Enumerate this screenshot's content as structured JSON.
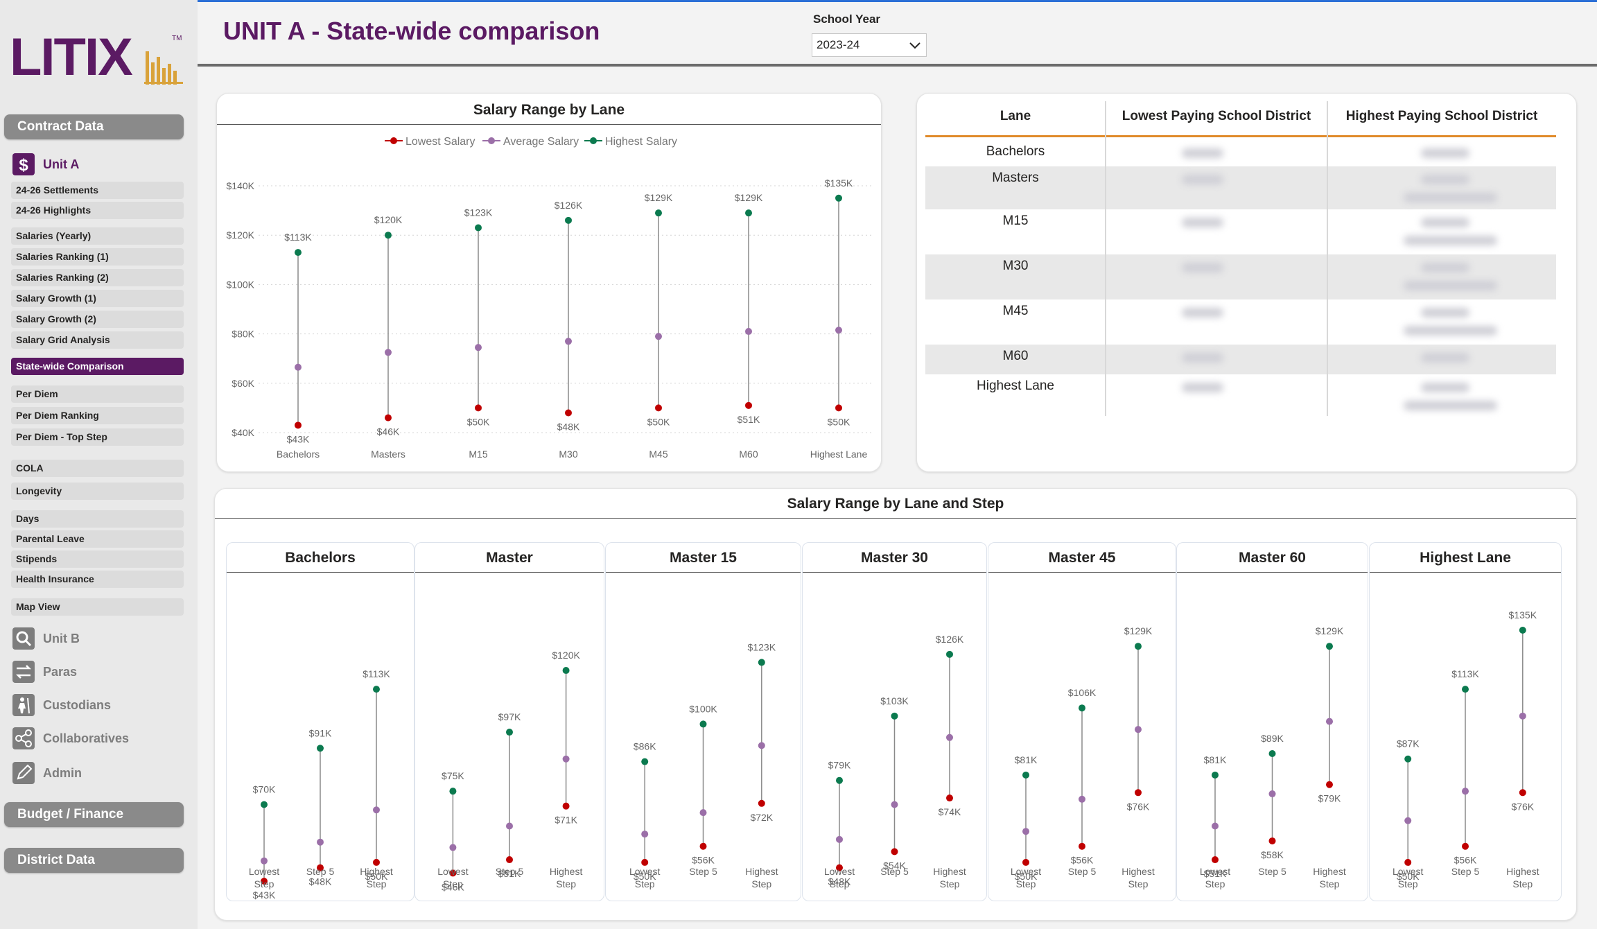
{
  "logo": {
    "text": "LITIX",
    "trademark": "TM"
  },
  "sidebar": {
    "sections": {
      "contract": "Contract Data",
      "budget": "Budget / Finance",
      "district": "District Data"
    },
    "units": {
      "unit_a": "Unit A",
      "unit_b": "Unit B",
      "paras": "Paras",
      "custodians": "Custodians",
      "collaboratives": "Collaboratives",
      "admin": "Admin"
    },
    "items": [
      "24-26 Settlements",
      "24-26 Highlights",
      "Salaries (Yearly)",
      "Salaries Ranking (1)",
      "Salaries Ranking (2)",
      "Salary Growth (1)",
      "Salary Growth (2)",
      "Salary Grid Analysis",
      "State-wide Comparison",
      "Per Diem",
      "Per Diem Ranking",
      "Per Diem - Top Step",
      "COLA",
      "Longevity",
      "Days",
      "Parental Leave",
      "Stipends",
      "Health Insurance",
      "Map View"
    ],
    "active_item": "State-wide Comparison"
  },
  "header": {
    "title": "UNIT A - State-wide comparison",
    "school_year_label": "School Year",
    "school_year_value": "2023-24"
  },
  "colors": {
    "brand": "#5b1a63",
    "lowest": "#c00000",
    "average": "#9b6fa8",
    "highest": "#0b7a4f",
    "table_accent": "#e08a2a"
  },
  "chart_data": [
    {
      "type": "scatter",
      "title": "Salary Range by Lane",
      "legend": [
        "Lowest Salary",
        "Average Salary",
        "Highest Salary"
      ],
      "legend_position": "top-center",
      "categories": [
        "Bachelors",
        "Masters",
        "M15",
        "M30",
        "M45",
        "M60",
        "Highest Lane"
      ],
      "series": [
        {
          "name": "Lowest Salary",
          "values": [
            43,
            46,
            50,
            48,
            50,
            51,
            50
          ],
          "labels": [
            "$43K",
            "$46K",
            "$50K",
            "$48K",
            "$50K",
            "$51K",
            "$50K"
          ]
        },
        {
          "name": "Average Salary",
          "values": [
            66.5,
            72.5,
            74.5,
            77,
            79,
            81,
            81.5
          ]
        },
        {
          "name": "Highest Salary",
          "values": [
            113,
            120,
            123,
            126,
            129,
            129,
            135
          ],
          "labels": [
            "$113K",
            "$120K",
            "$123K",
            "$126K",
            "$129K",
            "$129K",
            "$135K"
          ]
        }
      ],
      "yticks": [
        "$40K",
        "$60K",
        "$80K",
        "$100K",
        "$120K",
        "$140K"
      ],
      "ylim": [
        40,
        140
      ],
      "grid": true
    },
    {
      "type": "scatter",
      "title": "Salary Range by Lane and Step",
      "panels": [
        {
          "title": "Bachelors",
          "categories": [
            "Lowest Step",
            "Step 5",
            "Highest Step"
          ],
          "low": [
            43,
            48,
            50
          ],
          "avg": [
            49,
            56,
            68
          ],
          "high": [
            70,
            91,
            113
          ],
          "low_labels": [
            "$43K",
            "$48K",
            "$50K"
          ],
          "high_labels": [
            "$70K",
            "$91K",
            "$113K"
          ]
        },
        {
          "title": "Master",
          "categories": [
            "Lowest Step",
            "Step 5",
            "Highest Step"
          ],
          "low": [
            46,
            51,
            71
          ],
          "avg": [
            54,
            62,
            87
          ],
          "high": [
            75,
            97,
            120
          ],
          "low_labels": [
            "$46K",
            "$51K",
            "$71K"
          ],
          "high_labels": [
            "$75K",
            "$97K",
            "$120K"
          ]
        },
        {
          "title": "Master 15",
          "categories": [
            "Lowest Step",
            "Step 5",
            "Highest Step"
          ],
          "low": [
            50,
            56,
            72
          ],
          "avg": [
            59,
            67,
            92
          ],
          "high": [
            86,
            100,
            123
          ],
          "low_labels": [
            "$50K",
            "$56K",
            "$72K"
          ],
          "high_labels": [
            "$86K",
            "$100K",
            "$123K"
          ]
        },
        {
          "title": "Master 30",
          "categories": [
            "Lowest Step",
            "Step 5",
            "Highest Step"
          ],
          "low": [
            48,
            54,
            74
          ],
          "avg": [
            57,
            70,
            95
          ],
          "high": [
            79,
            103,
            126
          ],
          "low_labels": [
            "$48K",
            "$54K",
            "$74K"
          ],
          "high_labels": [
            "$79K",
            "$103K",
            "$126K"
          ]
        },
        {
          "title": "Master 45",
          "categories": [
            "Lowest Step",
            "Step 5",
            "Highest Step"
          ],
          "low": [
            50,
            56,
            76
          ],
          "avg": [
            60,
            72,
            98
          ],
          "high": [
            81,
            106,
            129
          ],
          "low_labels": [
            "$50K",
            "$56K",
            "$76K"
          ],
          "high_labels": [
            "$81K",
            "$106K",
            "$129K"
          ]
        },
        {
          "title": "Master 60",
          "categories": [
            "Lowest Step",
            "Step 5",
            "Highest Step"
          ],
          "low": [
            51,
            58,
            79
          ],
          "avg": [
            62,
            74,
            101
          ],
          "high": [
            81,
            89,
            129
          ],
          "low_labels": [
            "$51K",
            "$58K",
            "$79K"
          ],
          "high_labels": [
            "$81K",
            "$89K",
            "$129K"
          ]
        },
        {
          "title": "Highest Lane",
          "categories": [
            "Lowest Step",
            "Step 5",
            "Highest Step"
          ],
          "low": [
            50,
            56,
            76
          ],
          "avg": [
            64,
            75,
            103
          ],
          "high": [
            87,
            113,
            135
          ],
          "low_labels": [
            "$50K",
            "$56K",
            "$76K"
          ],
          "high_labels": [
            "$87K",
            "$113K",
            "$135K"
          ]
        }
      ]
    }
  ],
  "table": {
    "headers": [
      "Lane",
      "Lowest Paying School District",
      "Highest Paying School District"
    ],
    "lanes": [
      "Bachelors",
      "Masters",
      "M15",
      "M30",
      "M45",
      "M60",
      "Highest Lane"
    ]
  }
}
